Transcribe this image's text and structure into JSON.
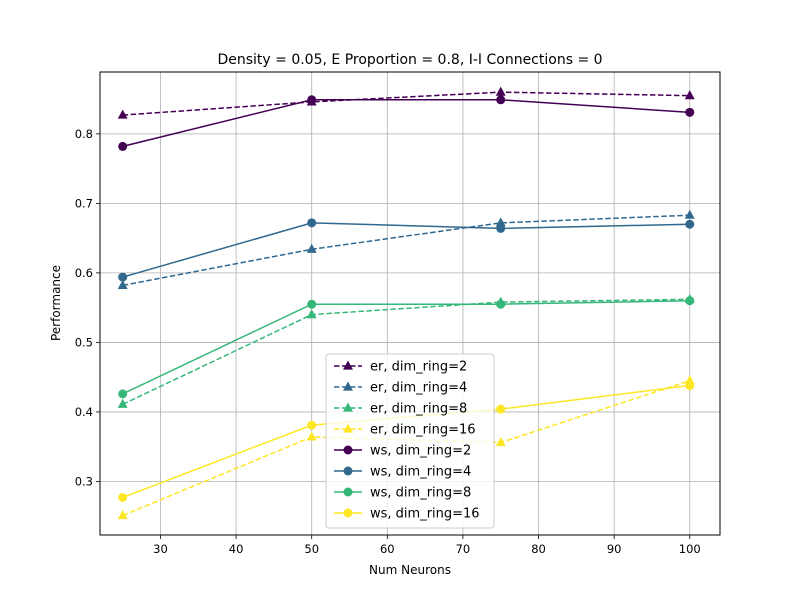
{
  "chart_data": {
    "type": "line",
    "title": "Density = 0.05, E Proportion = 0.8, I-I Connections = 0",
    "xlabel": "Num Neurons",
    "ylabel": "Performance",
    "xlim": [
      22,
      104
    ],
    "ylim": [
      0.223,
      0.889
    ],
    "xticks": [
      30,
      40,
      50,
      60,
      70,
      80,
      90,
      100
    ],
    "yticks": [
      0.3,
      0.4,
      0.5,
      0.6,
      0.7,
      0.8
    ],
    "grid": true,
    "legend_position": "lower-center",
    "x": [
      25,
      50,
      75,
      100
    ],
    "series": [
      {
        "name": "er, dim_ring=2",
        "values": [
          0.827,
          0.846,
          0.86,
          0.855
        ],
        "color": "#440154",
        "linestyle": "dashed",
        "marker": "triangle"
      },
      {
        "name": "er, dim_ring=4",
        "values": [
          0.582,
          0.634,
          0.672,
          0.683
        ],
        "color": "#31688e",
        "linestyle": "dashed",
        "marker": "triangle"
      },
      {
        "name": "er, dim_ring=8",
        "values": [
          0.411,
          0.54,
          0.558,
          0.562
        ],
        "color": "#35b779",
        "linestyle": "dashed",
        "marker": "triangle"
      },
      {
        "name": "er, dim_ring=16",
        "values": [
          0.251,
          0.364,
          0.356,
          0.445
        ],
        "color": "#fde725",
        "linestyle": "dashed",
        "marker": "triangle"
      },
      {
        "name": "ws, dim_ring=2",
        "values": [
          0.782,
          0.849,
          0.849,
          0.831
        ],
        "color": "#440154",
        "linestyle": "solid",
        "marker": "circle"
      },
      {
        "name": "ws, dim_ring=4",
        "values": [
          0.594,
          0.672,
          0.664,
          0.67
        ],
        "color": "#31688e",
        "linestyle": "solid",
        "marker": "circle"
      },
      {
        "name": "ws, dim_ring=8",
        "values": [
          0.426,
          0.555,
          0.555,
          0.56
        ],
        "color": "#35b779",
        "linestyle": "solid",
        "marker": "circle"
      },
      {
        "name": "ws, dim_ring=16",
        "values": [
          0.277,
          0.381,
          0.404,
          0.438
        ],
        "color": "#fde725",
        "linestyle": "solid",
        "marker": "circle"
      }
    ]
  }
}
